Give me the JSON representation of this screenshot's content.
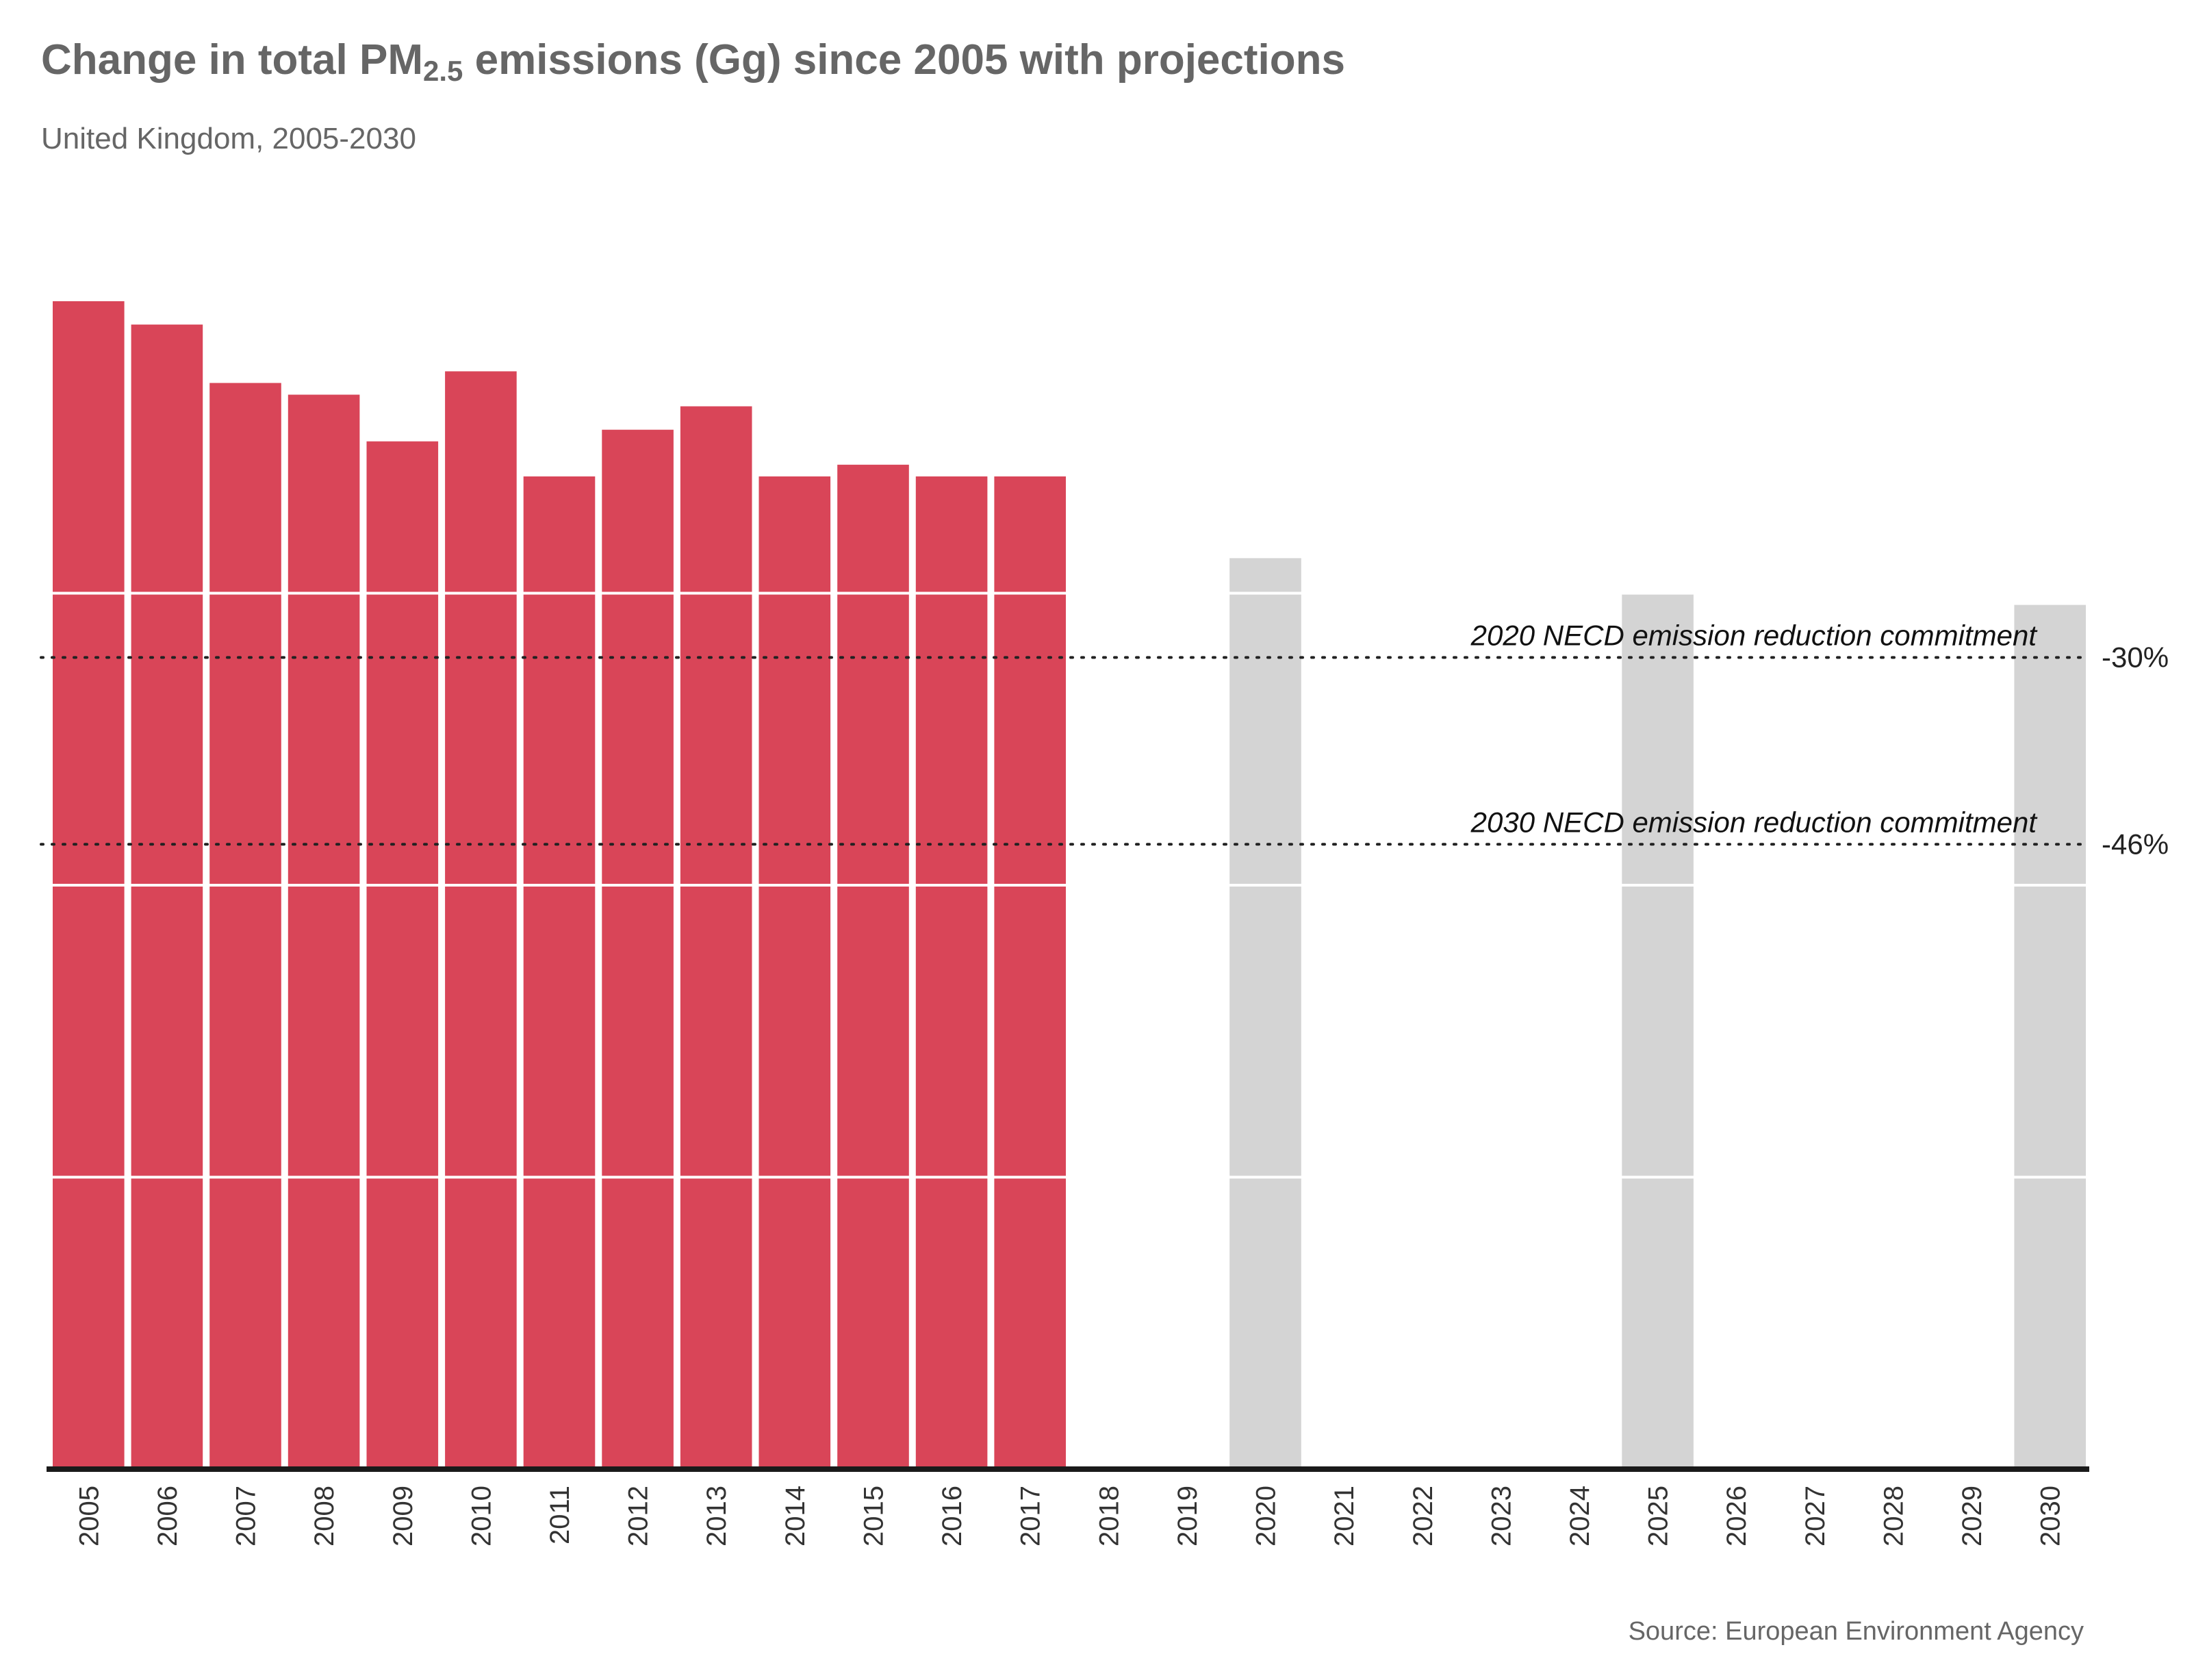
{
  "title": {
    "main": "Change in total PM",
    "sub": "2.5",
    "rest": " emissions (Gg) since 2005 with projections"
  },
  "subtitle": "United Kingdom, 2005-2030",
  "source": "Source: European Environment Agency",
  "colors": {
    "historical": "#d94558",
    "projection": "#d4d4d4",
    "axis": "#1a1a1a",
    "gridline": "#ffffff",
    "reference": "#222222"
  },
  "chart_data": {
    "type": "bar",
    "categories": [
      "2005",
      "2006",
      "2007",
      "2008",
      "2009",
      "2010",
      "2011",
      "2012",
      "2013",
      "2014",
      "2015",
      "2016",
      "2017",
      "2018",
      "2019",
      "2020",
      "2021",
      "2022",
      "2023",
      "2024",
      "2025",
      "2026",
      "2027",
      "2028",
      "2029",
      "2030"
    ],
    "series": [
      {
        "values": [
          100,
          98,
          93,
          92,
          88,
          94,
          85,
          89,
          91,
          85,
          86,
          85,
          85,
          null,
          null,
          null,
          null,
          null,
          null,
          null,
          null,
          null,
          null,
          null,
          null,
          null
        ]
      },
      {
        "values": [
          null,
          null,
          null,
          null,
          null,
          null,
          null,
          null,
          null,
          null,
          null,
          null,
          null,
          null,
          null,
          78,
          null,
          null,
          null,
          null,
          75,
          null,
          null,
          null,
          null,
          74
        ]
      }
    ],
    "ylim": [
      0,
      100
    ],
    "gridlines": [
      25,
      50,
      75
    ],
    "reference_lines": [
      {
        "label": "2020 NECD emission reduction commitment",
        "pct": "-30%",
        "value": 69.5
      },
      {
        "label": "2030 NECD emission reduction commitment",
        "pct": "-46%",
        "value": 53.5
      }
    ]
  }
}
